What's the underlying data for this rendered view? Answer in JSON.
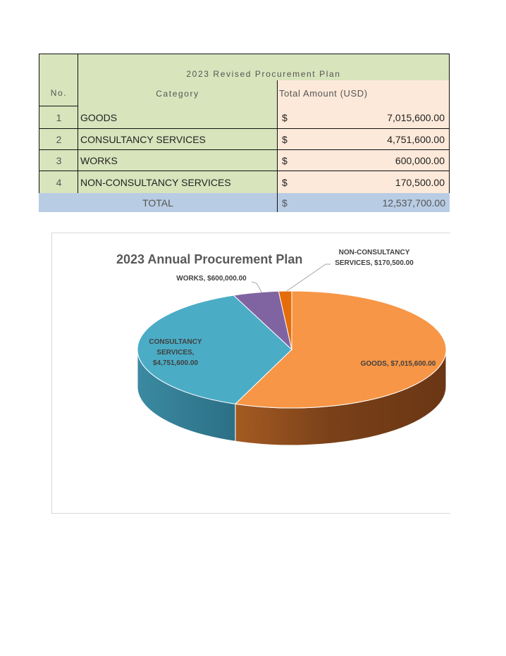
{
  "table": {
    "title": "2023 Revised Procurement Plan",
    "headers": {
      "no": "No.",
      "category": "Category",
      "amount": "Total Amount (USD)"
    },
    "rows": [
      {
        "no": "1",
        "category": "GOODS",
        "currency": "$",
        "amount": "7,015,600.00"
      },
      {
        "no": "2",
        "category": "CONSULTANCY SERVICES",
        "currency": "$",
        "amount": "4,751,600.00"
      },
      {
        "no": "3",
        "category": "WORKS",
        "currency": "$",
        "amount": "600,000.00"
      },
      {
        "no": "4",
        "category": "NON-CONSULTANCY SERVICES",
        "currency": "$",
        "amount": "170,500.00"
      }
    ],
    "total": {
      "label": "TOTAL",
      "currency": "$",
      "amount": "12,537,700.00"
    },
    "colors": {
      "green": "#d8e4bc",
      "peach": "#fde9d9",
      "blue": "#b8cce4"
    }
  },
  "chart_data": {
    "type": "pie",
    "title": "2023 Annual Procurement Plan",
    "categories": [
      "GOODS",
      "CONSULTANCY SERVICES",
      "WORKS",
      "NON-CONSULTANCY SERVICES"
    ],
    "values": [
      7015600,
      4751600,
      600000,
      170500
    ],
    "data_labels": [
      "GOODS, $7,015,600.00",
      "CONSULTANCY SERVICES, $4,751,600.00",
      "WORKS, $600,000.00",
      "NON-CONSULTANCY SERVICES, $170,500.00"
    ],
    "colors": [
      "#f79646",
      "#4bacc6",
      "#8064a2",
      "#e46c0a"
    ],
    "style": "3d",
    "legend": "none"
  }
}
